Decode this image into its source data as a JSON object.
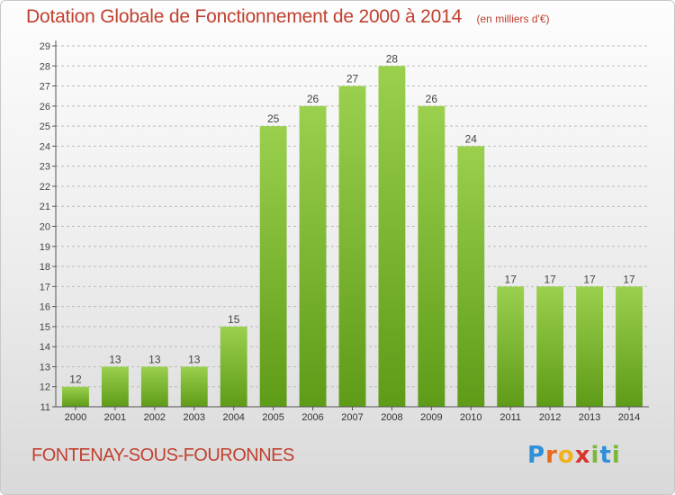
{
  "header": {
    "title": "Dotation Globale de Fonctionnement de 2000 à 2014",
    "subtitle": "(en milliers d'€)"
  },
  "footer": {
    "commune": "FONTENAY-SOUS-FOURONNES",
    "logo_text": "Proxiti"
  },
  "colors": {
    "title": "#c0402f",
    "bar_top": "#9ad04e",
    "bar_bottom": "#5e9b17",
    "grid": "#bcbcbc"
  },
  "chart_data": {
    "type": "bar",
    "title": "Dotation Globale de Fonctionnement de 2000 à 2014",
    "subtitle": "(en milliers d'€)",
    "xlabel": "",
    "ylabel": "",
    "categories": [
      "2000",
      "2001",
      "2002",
      "2003",
      "2004",
      "2005",
      "2006",
      "2007",
      "2008",
      "2009",
      "2010",
      "2011",
      "2012",
      "2013",
      "2014"
    ],
    "values": [
      12,
      13,
      13,
      13,
      15,
      25,
      26,
      27,
      28,
      26,
      24,
      17,
      17,
      17,
      17
    ],
    "data_labels": [
      "12",
      "13",
      "13",
      "13",
      "15",
      "25",
      "26",
      "27",
      "28",
      "26",
      "24",
      "17",
      "17",
      "17",
      "17"
    ],
    "ylim": [
      11,
      29
    ],
    "yticks": [
      11,
      12,
      13,
      14,
      15,
      16,
      17,
      18,
      19,
      20,
      21,
      22,
      23,
      24,
      25,
      26,
      27,
      28,
      29
    ],
    "grid": true,
    "grid_style": "dashed horizontal"
  }
}
